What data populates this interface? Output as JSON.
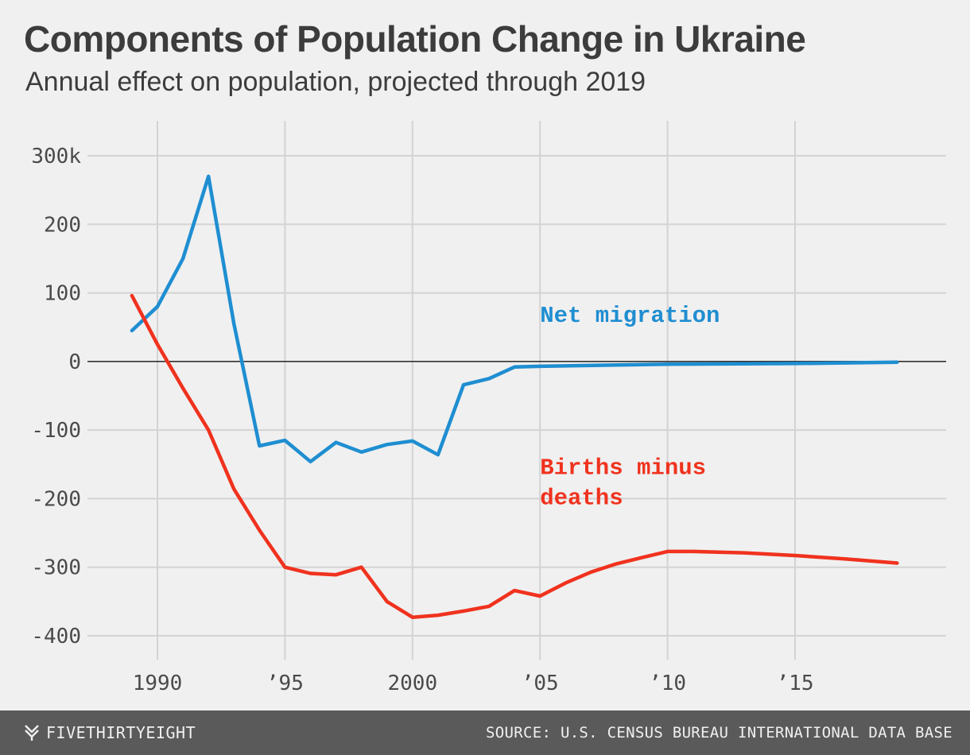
{
  "header": {
    "title": "Components of Population Change in Ukraine",
    "subtitle": "Annual effect on population, projected through 2019"
  },
  "footer": {
    "brand": "FIVETHIRTYEIGHT",
    "brand_icon": "fivethirtyeight-logo-icon",
    "source": "SOURCE: U.S. CENSUS BUREAU INTERNATIONAL DATA BASE"
  },
  "chart_data": {
    "type": "line",
    "title": "Components of Population Change in Ukraine",
    "subtitle": "Annual effect on population, projected through 2019",
    "xlabel": "",
    "ylabel": "",
    "xlim": [
      1986.5,
      2020.7
    ],
    "ylim": [
      -400,
      300
    ],
    "grid": true,
    "x_ticks": [
      1990,
      1995,
      2000,
      2005,
      2010,
      2015
    ],
    "x_tick_labels": [
      "1990",
      "’95",
      "2000",
      "’05",
      "’10",
      "’15"
    ],
    "y_ticks": [
      300,
      200,
      100,
      0,
      -100,
      -200,
      -300,
      -400
    ],
    "y_tick_labels": [
      "300k",
      "200",
      "100",
      "0",
      "-100",
      "-200",
      "-300",
      "-400"
    ],
    "series": [
      {
        "name": "Net migration",
        "color": "#1f8ed1",
        "x": [
          1989,
          1990,
          1991,
          1992,
          1993,
          1994,
          1995,
          1996,
          1997,
          1998,
          1999,
          2000,
          2001,
          2002,
          2003,
          2004,
          2005,
          2010,
          2015,
          2019
        ],
        "values": [
          45,
          80,
          150,
          270,
          55,
          -123,
          -115,
          -146,
          -118,
          -132,
          -121,
          -116,
          -136,
          -34,
          -25,
          -8,
          -7,
          -4,
          -3,
          -1
        ]
      },
      {
        "name": "Births minus deaths",
        "color": "#f0321e",
        "x": [
          1989,
          1990,
          1991,
          1992,
          1993,
          1994,
          1995,
          1996,
          1997,
          1998,
          1999,
          2000,
          2001,
          2002,
          2003,
          2004,
          2005,
          2006,
          2007,
          2008,
          2009,
          2010,
          2011,
          2013,
          2015,
          2017,
          2019
        ],
        "values": [
          96,
          25,
          -39,
          -100,
          -186,
          -246,
          -300,
          -309,
          -311,
          -300,
          -350,
          -373,
          -370,
          -364,
          -357,
          -334,
          -342,
          -323,
          -307,
          -295,
          -286,
          -277,
          -277,
          -279,
          -283,
          -288,
          -294
        ]
      }
    ],
    "annotations": [
      {
        "text": "Net migration",
        "series": "Net migration",
        "x": 2005,
        "y": 58
      },
      {
        "text": "Births minus",
        "series": "Births minus deaths",
        "x": 2005,
        "y": -164
      },
      {
        "text": "deaths",
        "series": "Births minus deaths",
        "x": 2005,
        "y": -208
      }
    ]
  }
}
